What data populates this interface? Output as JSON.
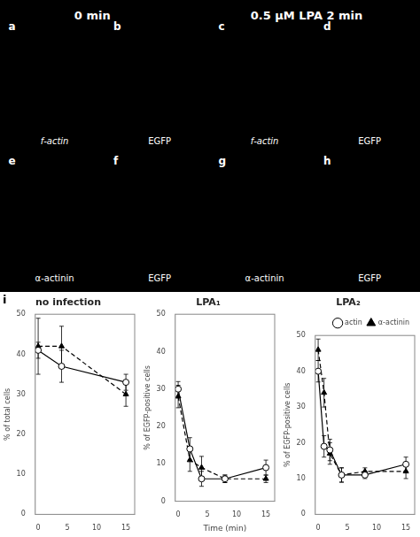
{
  "chart_data": [
    {
      "type": "image",
      "annotations": [
        "0 min",
        "0.5 μM LPA 2 min",
        "a",
        "b",
        "c",
        "d",
        "e",
        "f",
        "g",
        "h",
        "f-actin",
        "EGFP",
        "f-actin",
        "EGFP",
        "α-actinin",
        "EGFP",
        "α-actinin",
        "EGFP"
      ]
    },
    {
      "type": "line",
      "title": "no infection",
      "annotations": [
        "i"
      ],
      "ylabel": "% of total cells",
      "xlim": [
        -0.5,
        16.5
      ],
      "xticks": [
        0,
        5,
        10,
        15
      ],
      "ylim": [
        0,
        50
      ],
      "yticks": [
        0,
        10,
        20,
        30,
        40,
        50
      ],
      "grid": false,
      "series": [
        {
          "name": "actin",
          "color": "black",
          "marker": "circle",
          "line_style": "solid",
          "x": [
            0,
            4,
            15
          ],
          "values": [
            41,
            37,
            33
          ],
          "yerr": [
            2,
            4,
            2
          ]
        },
        {
          "name": "α-actinin",
          "color": "black",
          "marker": "triangle",
          "line_style": "dashed",
          "x": [
            0,
            4,
            15
          ],
          "values": [
            42,
            42,
            30
          ],
          "yerr": [
            7,
            5,
            3
          ]
        }
      ]
    },
    {
      "type": "line",
      "title": "LPA₁",
      "xlabel": "Time (min)",
      "ylabel": "% of EGFP-positive cells",
      "xlim": [
        -0.5,
        16.5
      ],
      "xticks": [
        0,
        5,
        10,
        15
      ],
      "ylim": [
        0,
        50
      ],
      "yticks": [
        0,
        10,
        20,
        30,
        40,
        50
      ],
      "grid": false,
      "series": [
        {
          "name": "actin",
          "color": "black",
          "marker": "circle",
          "line_style": "solid",
          "x": [
            0,
            2,
            4,
            8,
            15
          ],
          "values": [
            30,
            14,
            6,
            6,
            9
          ],
          "yerr": [
            2,
            3,
            2,
            1,
            2
          ]
        },
        {
          "name": "α-actinin",
          "color": "black",
          "marker": "triangle",
          "line_style": "dashed",
          "x": [
            0,
            2,
            4,
            8,
            15
          ],
          "values": [
            28,
            11,
            9,
            6,
            6
          ],
          "yerr": [
            3,
            3,
            3,
            1,
            1
          ]
        }
      ]
    },
    {
      "type": "line",
      "title": "LPA₂",
      "ylabel": "% of EGFP-positive cells",
      "legend": "upper right",
      "xlim": [
        -0.5,
        16.5
      ],
      "xticks": [
        0,
        5,
        10,
        15
      ],
      "ylim": [
        0,
        50
      ],
      "yticks": [
        0,
        10,
        20,
        30,
        40,
        50
      ],
      "grid": false,
      "series": [
        {
          "name": "actin",
          "color": "black",
          "marker": "circle",
          "line_style": "solid",
          "x": [
            0,
            1,
            2,
            4,
            8,
            15
          ],
          "values": [
            40,
            19,
            18,
            11,
            11,
            14
          ],
          "yerr": [
            3,
            3,
            3,
            2,
            1,
            2
          ]
        },
        {
          "name": "α-actinin",
          "color": "black",
          "marker": "triangle",
          "line_style": "dashed",
          "x": [
            0,
            1,
            2,
            4,
            8,
            15
          ],
          "values": [
            46,
            34,
            17,
            11,
            12,
            12
          ],
          "yerr": [
            3,
            4,
            3,
            2,
            1,
            2
          ]
        }
      ]
    }
  ]
}
